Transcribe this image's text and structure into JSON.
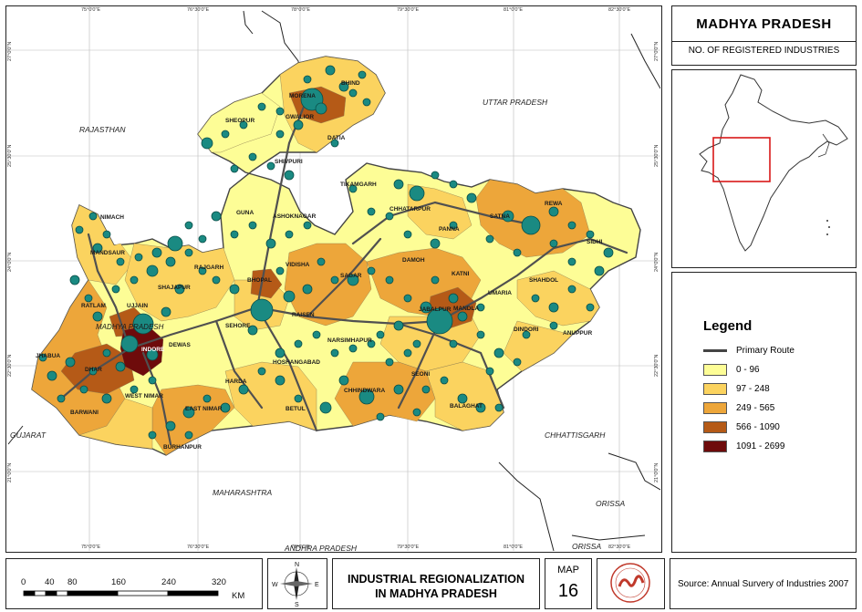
{
  "title": {
    "main": "MADHYA PRADESH",
    "sub": "NO. OF REGISTERED INDUSTRIES"
  },
  "legend": {
    "title": "Legend",
    "route_label": "Primary Route",
    "classes": [
      {
        "label": "0 - 96",
        "color": "#fdfd96"
      },
      {
        "label": "97 - 248",
        "color": "#fbd35f"
      },
      {
        "label": "249 - 565",
        "color": "#eda63a"
      },
      {
        "label": "566 - 1090",
        "color": "#b55a17"
      },
      {
        "label": "1091 - 2699",
        "color": "#6e0b0b"
      }
    ]
  },
  "map_title": {
    "line1": "INDUSTRIAL REGIONALIZATION",
    "line2": "IN MADHYA PRADESH"
  },
  "map_number": {
    "label": "MAP",
    "value": "16"
  },
  "source": "Source: Annual Survery of Industries 2007",
  "scale": {
    "ticks": [
      "0",
      "40",
      "80",
      "160",
      "240",
      "320"
    ],
    "unit": "KM"
  },
  "compass": {
    "n": "N",
    "s": "S",
    "e": "E",
    "w": "W"
  },
  "graticule": {
    "top": [
      "75°0'0\"E",
      "76°30'0\"E",
      "78°0'0\"E",
      "79°30'0\"E",
      "81°0'0\"E",
      "82°30'0\"E"
    ],
    "left": [
      "27°0'0\"N",
      "25°30'0\"N",
      "24°0'0\"N",
      "22°30'0\"N",
      "21°0'0\"N"
    ],
    "right": [
      "27°0'0\"N",
      "25°30'0\"N",
      "24°0'0\"N",
      "22°30'0\"N",
      "21°0'0\"N"
    ]
  },
  "neighbor_labels": [
    "RAJASTHAN",
    "UTTAR PRADESH",
    "GUJARAT",
    "MAHARASHTRA",
    "CHHATTISGARH",
    "ANDHRA PRADESH",
    "ORISSA",
    "ORISSA"
  ],
  "district_labels": [
    "MORENA",
    "BHIND",
    "GWALIOR",
    "DATIA",
    "SHEOPUR",
    "SHIVPURI",
    "TIKAMGARH",
    "CHHATARPUR",
    "PANNA",
    "REWA",
    "SATNA",
    "SIDHI",
    "NIMACH",
    "MANDSAUR",
    "RATLAM",
    "JHABUA",
    "DHAR",
    "INDORE",
    "UJJAIN",
    "SHAJAPUR",
    "RAJGARH",
    "GUNA",
    "ASHOKNAGAR",
    "VIDISHA",
    "BHOPAL",
    "SEHORE",
    "RAISEN",
    "SAGAR",
    "DAMOH",
    "KATNI",
    "UMARIA",
    "SHAHDOL",
    "ANUPPUR",
    "DINDORI",
    "MANDLA",
    "JABALPUR",
    "NARSIMHAPUR",
    "HOSHANGABAD",
    "HARDA",
    "DEWAS",
    "WEST NIMAR",
    "EAST NIMAR",
    "BARWANI",
    "BURHANPUR",
    "BETUL",
    "CHHINDWARA",
    "SEONI",
    "BALAGHAT",
    "MADHYA PRADESH",
    "DEWAS"
  ],
  "inset_map": {
    "highlight": "Madhya Pradesh extent"
  }
}
